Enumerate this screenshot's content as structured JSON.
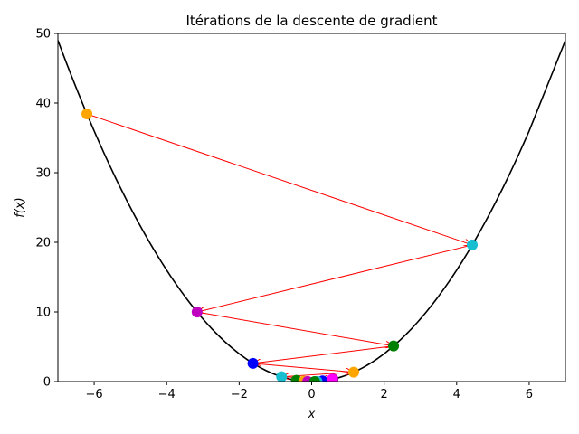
{
  "chart_data": {
    "type": "line",
    "title": "Itérations de la descente de gradient",
    "xlabel": "x",
    "ylabel": "f(x)",
    "xlim": [
      -7,
      7
    ],
    "ylim": [
      0,
      50
    ],
    "xticks": [
      -6,
      -4,
      -2,
      0,
      2,
      4,
      6
    ],
    "xtick_labels": [
      "−6",
      "−4",
      "−2",
      "0",
      "2",
      "4",
      "6"
    ],
    "yticks": [
      0,
      10,
      20,
      30,
      40,
      50
    ],
    "ytick_labels": [
      "0",
      "10",
      "20",
      "30",
      "40",
      "50"
    ],
    "grid": false,
    "curve": {
      "x_range": [
        -7,
        7
      ],
      "function_points": [
        [
          -7,
          49.0
        ],
        [
          -6,
          36.0
        ],
        [
          -5,
          25.0
        ],
        [
          -4,
          16.0
        ],
        [
          -3,
          9.0
        ],
        [
          -2,
          4.0
        ],
        [
          -1,
          1.0
        ],
        [
          0,
          0.0
        ],
        [
          1,
          1.0
        ],
        [
          2,
          4.0
        ],
        [
          3,
          9.0
        ],
        [
          4,
          16.0
        ],
        [
          5,
          25.0
        ],
        [
          6,
          36.0
        ],
        [
          7,
          49.0
        ]
      ],
      "color": "#000000"
    },
    "iterates": [
      {
        "x": -6.2,
        "y": 38.44,
        "color": "#ffa500"
      },
      {
        "x": 4.43,
        "y": 19.62,
        "color": "#17becf"
      },
      {
        "x": -3.16,
        "y": 9.99,
        "color": "#bf00bf"
      },
      {
        "x": 2.26,
        "y": 5.11,
        "color": "#008000"
      },
      {
        "x": -1.62,
        "y": 2.62,
        "color": "#0000ff"
      },
      {
        "x": 1.16,
        "y": 1.35,
        "color": "#ffa500"
      },
      {
        "x": -0.83,
        "y": 0.69,
        "color": "#17becf"
      },
      {
        "x": 0.59,
        "y": 0.35,
        "color": "#bf00bf"
      },
      {
        "x": -0.42,
        "y": 0.18,
        "color": "#008000"
      },
      {
        "x": 0.3,
        "y": 0.09,
        "color": "#0000ff"
      },
      {
        "x": -0.22,
        "y": 0.05,
        "color": "#ffa500"
      },
      {
        "x": 0.15,
        "y": 0.02,
        "color": "#17becf"
      },
      {
        "x": -0.11,
        "y": 0.01,
        "color": "#bf00bf"
      },
      {
        "x": 0.08,
        "y": 0.006,
        "color": "#008000"
      },
      {
        "x": 0.56,
        "y": 0.31,
        "color": "#ff00ff"
      }
    ],
    "arrow_color": "#ff0000"
  }
}
